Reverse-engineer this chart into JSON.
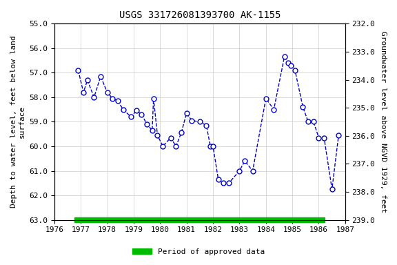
{
  "title": "USGS 331726081393700 AK-1155",
  "ylabel_left": "Depth to water level, feet below land\nsurface",
  "ylabel_right": "Groundwater level above NGVD 1929, feet",
  "ylim_left": [
    55.0,
    63.0
  ],
  "ylim_right": [
    232.0,
    239.0
  ],
  "xlim": [
    1976,
    1987
  ],
  "xticks": [
    1976,
    1977,
    1978,
    1979,
    1980,
    1981,
    1982,
    1983,
    1984,
    1985,
    1986,
    1987
  ],
  "yticks_left": [
    55.0,
    56.0,
    57.0,
    58.0,
    59.0,
    60.0,
    61.0,
    62.0,
    63.0
  ],
  "yticks_right": [
    232.0,
    233.0,
    234.0,
    235.0,
    236.0,
    237.0,
    238.0,
    239.0
  ],
  "data_x": [
    1976.9,
    1977.1,
    1977.25,
    1977.5,
    1977.75,
    1978.0,
    1978.2,
    1978.4,
    1978.6,
    1978.9,
    1979.1,
    1979.3,
    1979.5,
    1979.7,
    1979.75,
    1979.9,
    1980.1,
    1980.4,
    1980.6,
    1980.8,
    1981.0,
    1981.2,
    1981.5,
    1981.75,
    1981.9,
    1982.0,
    1982.2,
    1982.4,
    1982.6,
    1983.0,
    1983.2,
    1983.5,
    1984.0,
    1984.3,
    1984.7,
    1984.85,
    1984.95,
    1985.1,
    1985.4,
    1985.6,
    1985.8,
    1986.0,
    1986.2,
    1986.5,
    1986.75
  ],
  "data_y": [
    56.9,
    57.8,
    57.3,
    58.0,
    57.15,
    57.8,
    58.05,
    58.15,
    58.5,
    58.8,
    58.55,
    58.7,
    59.1,
    59.35,
    58.05,
    59.55,
    60.0,
    59.65,
    60.0,
    59.45,
    58.65,
    58.95,
    59.0,
    59.15,
    60.0,
    60.0,
    61.35,
    61.5,
    61.5,
    61.0,
    60.6,
    61.0,
    58.05,
    58.5,
    56.35,
    56.6,
    56.7,
    56.9,
    58.4,
    59.0,
    59.0,
    59.65,
    59.65,
    61.75,
    59.55
  ],
  "line_color": "#0000CC",
  "marker_color": "#0000CC",
  "marker_face": "white",
  "marker_size": 5,
  "line_style": "--",
  "line_width": 1.0,
  "grid_color": "#CCCCCC",
  "background_color": "#ffffff",
  "approved_bar_color": "#00BB00",
  "approved_bar_xstart": 1976.75,
  "approved_bar_xend": 1986.25,
  "legend_label": "Period of approved data",
  "title_fontsize": 10,
  "axis_label_fontsize": 8,
  "tick_fontsize": 8
}
